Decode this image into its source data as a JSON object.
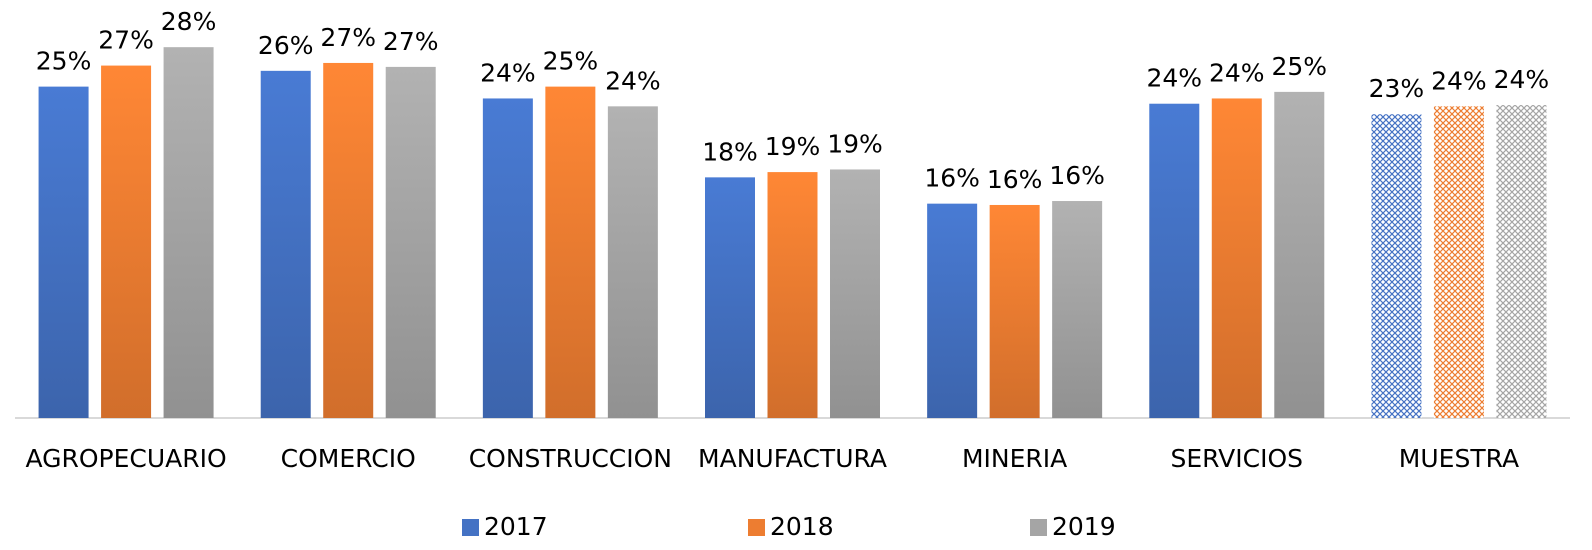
{
  "chart_data": {
    "type": "bar",
    "categories": [
      "AGROPECUARIO",
      "COMERCIO",
      "CONSTRUCCION",
      "MANUFACTURA",
      "MINERIA",
      "SERVICIOS",
      "MUESTRA"
    ],
    "series": [
      {
        "name": "2017",
        "color": "#4472c4",
        "values": [
          25.2,
          26.4,
          24.3,
          18.3,
          16.3,
          23.9,
          23.1
        ],
        "value_labels": [
          "25%",
          "26%",
          "24%",
          "18%",
          "16%",
          "24%",
          "23%"
        ]
      },
      {
        "name": "2018",
        "color": "#ed7d31",
        "values": [
          26.8,
          27.0,
          25.2,
          18.7,
          16.2,
          24.3,
          23.7
        ],
        "value_labels": [
          "27%",
          "27%",
          "25%",
          "19%",
          "16%",
          "24%",
          "24%"
        ]
      },
      {
        "name": "2019",
        "color": "#a5a5a5",
        "values": [
          28.2,
          26.7,
          23.7,
          18.9,
          16.5,
          24.8,
          23.8
        ],
        "value_labels": [
          "28%",
          "27%",
          "24%",
          "19%",
          "16%",
          "25%",
          "24%"
        ]
      }
    ],
    "hatched": [
      false,
      false,
      false,
      false,
      false,
      false,
      true
    ],
    "legend": "bottom"
  }
}
